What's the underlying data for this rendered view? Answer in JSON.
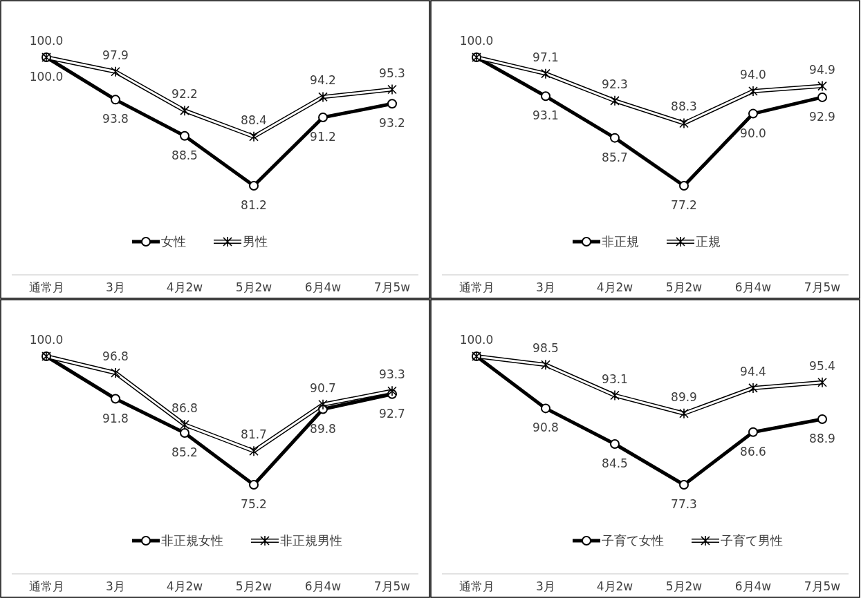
{
  "chart_data": [
    {
      "type": "line",
      "categories": [
        "通常月",
        "3月",
        "4月2w",
        "5月2w",
        "6月4w",
        "7月5w"
      ],
      "legend": "bottom",
      "series": [
        {
          "name": "女性",
          "color": "#000000",
          "marker": "circle",
          "values": [
            100.0,
            93.8,
            88.5,
            81.2,
            91.2,
            93.2
          ],
          "value_labels": [
            "100.0",
            "93.8",
            "88.5",
            "81.2",
            "91.2",
            "93.2"
          ]
        },
        {
          "name": "男性",
          "color": "#ffffff",
          "marker": "cross",
          "values": [
            100.0,
            97.9,
            92.2,
            88.4,
            94.2,
            95.3
          ],
          "value_labels": [
            "100.0",
            "97.9",
            "92.2",
            "88.4",
            "94.2",
            "95.3"
          ]
        }
      ]
    },
    {
      "type": "line",
      "categories": [
        "通常月",
        "3月",
        "4月2w",
        "5月2w",
        "6月4w",
        "7月5w"
      ],
      "legend": "bottom",
      "series": [
        {
          "name": "非正規",
          "color": "#000000",
          "marker": "circle",
          "values": [
            100.0,
            93.1,
            85.7,
            77.2,
            90.0,
            92.9
          ],
          "value_labels": [
            null,
            "93.1",
            "85.7",
            "77.2",
            "90.0",
            "92.9"
          ]
        },
        {
          "name": "正規",
          "color": "#ffffff",
          "marker": "cross",
          "values": [
            100.0,
            97.1,
            92.3,
            88.3,
            94.0,
            94.9
          ],
          "value_labels": [
            "100.0",
            "97.1",
            "92.3",
            "88.3",
            "94.0",
            "94.9"
          ]
        }
      ]
    },
    {
      "type": "line",
      "categories": [
        "通常月",
        "3月",
        "4月2w",
        "5月2w",
        "6月4w",
        "7月5w"
      ],
      "legend": "bottom",
      "series": [
        {
          "name": "非正規女性",
          "color": "#000000",
          "marker": "circle",
          "values": [
            100.0,
            91.8,
            85.2,
            75.2,
            89.8,
            92.7
          ],
          "value_labels": [
            null,
            "91.8",
            "85.2",
            "75.2",
            "89.8",
            "92.7"
          ]
        },
        {
          "name": "非正規男性",
          "color": "#ffffff",
          "marker": "cross",
          "values": [
            100.0,
            96.8,
            86.8,
            81.7,
            90.7,
            93.3
          ],
          "value_labels": [
            "100.0",
            "96.8",
            "86.8",
            "81.7",
            "90.7",
            "93.3"
          ]
        }
      ]
    },
    {
      "type": "line",
      "categories": [
        "通常月",
        "3月",
        "4月2w",
        "5月2w",
        "6月4w",
        "7月5w"
      ],
      "legend": "bottom",
      "series": [
        {
          "name": "子育て女性",
          "color": "#000000",
          "marker": "circle",
          "values": [
            100.0,
            90.8,
            84.5,
            77.3,
            86.6,
            88.9
          ],
          "value_labels": [
            null,
            "90.8",
            "84.5",
            "77.3",
            "86.6",
            "88.9"
          ]
        },
        {
          "name": "子育て男性",
          "color": "#ffffff",
          "marker": "cross",
          "values": [
            100.0,
            98.5,
            93.1,
            89.9,
            94.4,
            95.4
          ],
          "value_labels": [
            "100.0",
            "98.5",
            "93.1",
            "89.9",
            "94.4",
            "95.4"
          ]
        }
      ]
    }
  ]
}
